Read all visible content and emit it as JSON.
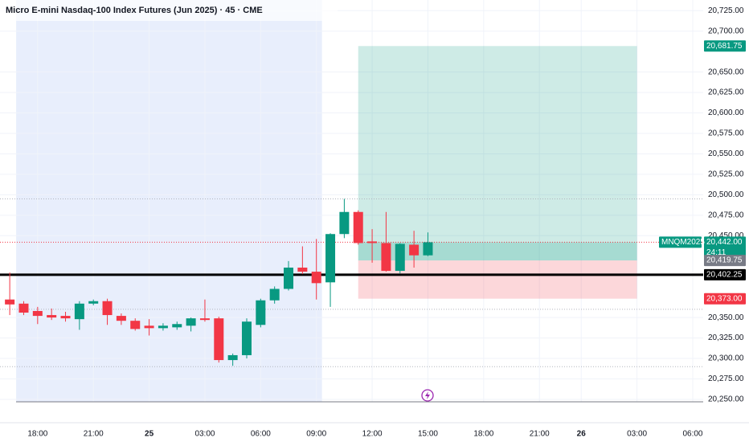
{
  "chart_data": {
    "type": "candlestick",
    "title": "Micro E-mini Nasdaq-100 Index Futures (Jun 2025) · 45 · CME",
    "x": [
      0,
      1,
      2,
      3,
      4,
      5,
      6,
      7,
      8,
      9,
      10,
      11,
      12,
      13,
      14,
      15,
      16,
      17,
      18,
      19,
      20,
      21,
      22,
      23,
      24,
      25,
      26,
      27,
      28,
      29,
      30
    ],
    "open": [
      20372,
      20367,
      20358,
      20353,
      20352,
      20348,
      20367,
      20370,
      20352,
      20346,
      20340,
      20337,
      20338,
      20340,
      20349,
      20349,
      20298,
      20304,
      20341,
      20371,
      20385,
      20411,
      20406,
      20393,
      20452,
      20479,
      20443,
      20441,
      20407,
      20439,
      20426
    ],
    "high": [
      20405,
      20370,
      20363,
      20361,
      20357,
      20370,
      20372,
      20373,
      20355,
      20349,
      20348,
      20343,
      20345,
      20350,
      20372,
      20351,
      20306,
      20349,
      20373,
      20388,
      20419,
      20437,
      20446,
      20453,
      20495,
      20481,
      20458,
      20479,
      20441,
      20456,
      20454
    ],
    "low": [
      20353,
      20353,
      20342,
      20347,
      20345,
      20335,
      20365,
      20341,
      20341,
      20334,
      20328,
      20334,
      20335,
      20333,
      20345,
      20295,
      20291,
      20300,
      20338,
      20367,
      20383,
      20403,
      20372,
      20363,
      20447,
      20439,
      20417,
      20406,
      20404,
      20411,
      20425
    ],
    "close": [
      20366,
      20356,
      20352,
      20350,
      20349,
      20367,
      20370,
      20353,
      20346,
      20336,
      20337,
      20340,
      20342,
      20349,
      20347,
      20298,
      20304,
      20345,
      20371,
      20385,
      20411,
      20406,
      20392,
      20452,
      20479,
      20441,
      20441,
      20407,
      20440,
      20426,
      20442
    ],
    "up_color": "#089981",
    "down_color": "#f23645",
    "xlim": [
      -0.7,
      49.75
    ],
    "ylim": [
      20247,
      20738
    ],
    "xticks": [
      {
        "value": 2,
        "label": "18:00"
      },
      {
        "value": 6,
        "label": "21:00"
      },
      {
        "value": 10,
        "label": "25"
      },
      {
        "value": 14,
        "label": "03:00"
      },
      {
        "value": 18,
        "label": "06:00"
      },
      {
        "value": 22,
        "label": "09:00"
      },
      {
        "value": 26,
        "label": "12:00"
      },
      {
        "value": 30,
        "label": "15:00"
      },
      {
        "value": 34,
        "label": "18:00"
      },
      {
        "value": 38,
        "label": "21:00"
      },
      {
        "value": 41,
        "label": "26"
      },
      {
        "value": 45,
        "label": "03:00"
      },
      {
        "value": 49,
        "label": "06:00"
      }
    ],
    "yticks": [
      {
        "value": 20725,
        "label": "20,725.00"
      },
      {
        "value": 20700,
        "label": "20,700.00"
      },
      {
        "value": 20650,
        "label": "20,650.00"
      },
      {
        "value": 20625,
        "label": "20,625.00"
      },
      {
        "value": 20600,
        "label": "20,600.00"
      },
      {
        "value": 20575,
        "label": "20,575.00"
      },
      {
        "value": 20550,
        "label": "20,550.00"
      },
      {
        "value": 20525,
        "label": "20,525.00"
      },
      {
        "value": 20500,
        "label": "20,500.00"
      },
      {
        "value": 20475,
        "label": "20,475.00"
      },
      {
        "value": 20450,
        "label": "20,450.00"
      },
      {
        "value": 20350,
        "label": "20,350.00"
      },
      {
        "value": 20325,
        "label": "20,325.00"
      },
      {
        "value": 20300,
        "label": "20,300.00"
      },
      {
        "value": 20275,
        "label": "20,275.00"
      },
      {
        "value": 20250,
        "label": "20,250.00"
      }
    ],
    "session_band": {
      "x": [
        0.46,
        22.4
      ],
      "color": "#e8eefc"
    },
    "price_labels": [
      {
        "value": 20681.75,
        "label": "20,681.75",
        "color": "#089981"
      },
      {
        "value": 20442,
        "label": "20,442.00",
        "color": "#089981",
        "symbol": "MNQM2025",
        "countdown": "24:11"
      },
      {
        "value": 20419.75,
        "label": "20,419.75",
        "color": "#787b86"
      },
      {
        "value": 20402.25,
        "label": "20,402.25",
        "color": "#000000"
      },
      {
        "value": 20373,
        "label": "20,373.00",
        "color": "#f23645"
      }
    ],
    "position": {
      "x": [
        25,
        45
      ],
      "profit_color": "#089981",
      "loss_color": "#f23645"
    },
    "dotted_lines": [
      {
        "value": 20495,
        "color": "#b2b5be"
      },
      {
        "value": 20360,
        "color": "#b2b5be"
      },
      {
        "value": 20290,
        "color": "#b2b5be"
      }
    ]
  }
}
